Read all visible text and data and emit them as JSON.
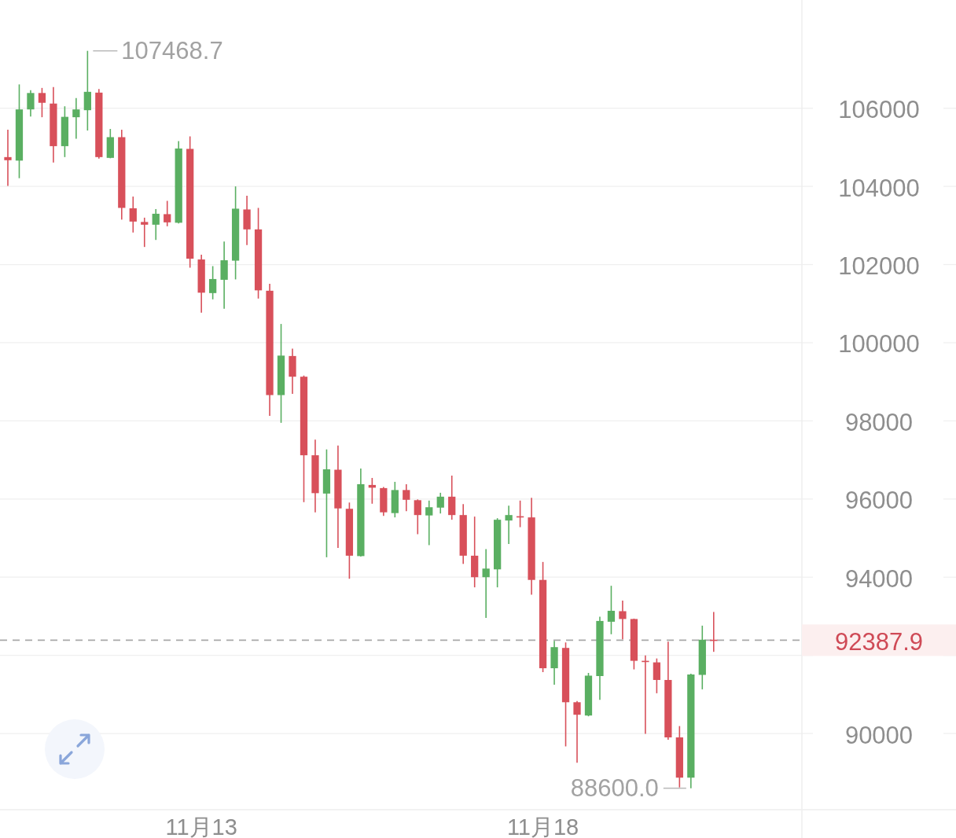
{
  "chart_data": {
    "type": "candlestick",
    "categories": [
      null,
      null,
      null,
      null,
      null,
      null,
      null,
      null,
      null,
      null,
      null,
      null,
      null,
      null,
      null,
      null,
      null,
      "11月13",
      null,
      null,
      null,
      null,
      null,
      null,
      null,
      null,
      null,
      null,
      null,
      null,
      null,
      null,
      null,
      null,
      null,
      null,
      null,
      null,
      null,
      null,
      null,
      null,
      null,
      null,
      null,
      null,
      null,
      "11月18",
      null,
      null,
      null,
      null,
      null,
      null,
      null,
      null,
      null,
      null,
      null,
      null,
      null,
      null,
      null
    ],
    "ohlc": [
      [
        104750,
        105450,
        104010,
        104670
      ],
      [
        104660,
        106610,
        104210,
        105970
      ],
      [
        105970,
        106460,
        105790,
        106390
      ],
      [
        106390,
        106520,
        105770,
        106140
      ],
      [
        106120,
        106540,
        104610,
        105030
      ],
      [
        105030,
        106050,
        104750,
        105780
      ],
      [
        105770,
        106260,
        105220,
        105970
      ],
      [
        105950,
        107468.7,
        105430,
        106420
      ],
      [
        106400,
        106490,
        104710,
        104750
      ],
      [
        104730,
        105470,
        104720,
        105260
      ],
      [
        105260,
        105450,
        103150,
        103450
      ],
      [
        103440,
        103740,
        102820,
        103100
      ],
      [
        103090,
        103200,
        102450,
        103020
      ],
      [
        103020,
        103420,
        102630,
        103300
      ],
      [
        103290,
        103630,
        102980,
        103080
      ],
      [
        103070,
        105160,
        103050,
        104970
      ],
      [
        104960,
        105280,
        101920,
        102150
      ],
      [
        102130,
        102250,
        100770,
        101280
      ],
      [
        101270,
        101960,
        101110,
        101630
      ],
      [
        101610,
        102590,
        100870,
        102110
      ],
      [
        102100,
        104000,
        101620,
        103430
      ],
      [
        103410,
        103760,
        102500,
        102900
      ],
      [
        102900,
        103450,
        101130,
        101340
      ],
      [
        101330,
        101510,
        98130,
        98660
      ],
      [
        98660,
        100480,
        97950,
        99670
      ],
      [
        99660,
        99850,
        98690,
        99130
      ],
      [
        99130,
        99160,
        95920,
        97120
      ],
      [
        97120,
        97520,
        95660,
        96150
      ],
      [
        96140,
        97270,
        94510,
        96760
      ],
      [
        96750,
        97370,
        94750,
        95760
      ],
      [
        95750,
        95910,
        93960,
        94550
      ],
      [
        94540,
        96780,
        94530,
        96380
      ],
      [
        96360,
        96540,
        95880,
        96290
      ],
      [
        96280,
        96310,
        95570,
        95660
      ],
      [
        95640,
        96440,
        95530,
        96230
      ],
      [
        96230,
        96380,
        95690,
        95980
      ],
      [
        95970,
        95990,
        95100,
        95590
      ],
      [
        95580,
        95960,
        94820,
        95790
      ],
      [
        95780,
        96160,
        95630,
        96060
      ],
      [
        96060,
        96600,
        95470,
        95590
      ],
      [
        95590,
        95870,
        94340,
        94550
      ],
      [
        94550,
        95550,
        93740,
        94000
      ],
      [
        94000,
        94720,
        92960,
        94220
      ],
      [
        94200,
        95510,
        93740,
        95470
      ],
      [
        95450,
        95830,
        94850,
        95590
      ],
      [
        95560,
        95960,
        95280,
        95530
      ],
      [
        95530,
        96030,
        93550,
        93930
      ],
      [
        93930,
        94390,
        91570,
        91670
      ],
      [
        91670,
        92370,
        91250,
        92210
      ],
      [
        92190,
        92330,
        89670,
        90800
      ],
      [
        90800,
        90830,
        89250,
        90480
      ],
      [
        90460,
        91550,
        90440,
        91480
      ],
      [
        91470,
        92990,
        90860,
        92880
      ],
      [
        92860,
        93780,
        92540,
        93140
      ],
      [
        93130,
        93400,
        92410,
        92930
      ],
      [
        92930,
        92940,
        91640,
        91860
      ],
      [
        91860,
        92000,
        89990,
        91840
      ],
      [
        91820,
        91920,
        91030,
        91370
      ],
      [
        91370,
        92350,
        89840,
        89900
      ],
      [
        89900,
        90190,
        88620,
        88870
      ],
      [
        88870,
        91530,
        88600.0,
        91510
      ],
      [
        91500,
        92760,
        91130,
        92400
      ],
      [
        92400,
        93110,
        92090,
        92387.9
      ]
    ],
    "colors": [
      "#d8505a",
      "#5aaf62",
      "#5aaf62",
      "#d8505a",
      "#d8505a",
      "#5aaf62",
      "#5aaf62",
      "#5aaf62",
      "#d8505a",
      "#5aaf62",
      "#d8505a",
      "#d8505a",
      "#d8505a",
      "#5aaf62",
      "#d8505a",
      "#5aaf62",
      "#d8505a",
      "#d8505a",
      "#5aaf62",
      "#5aaf62",
      "#5aaf62",
      "#d8505a",
      "#d8505a",
      "#d8505a",
      "#5aaf62",
      "#d8505a",
      "#d8505a",
      "#d8505a",
      "#5aaf62",
      "#d8505a",
      "#d8505a",
      "#5aaf62",
      "#d8505a",
      "#d8505a",
      "#5aaf62",
      "#d8505a",
      "#d8505a",
      "#5aaf62",
      "#5aaf62",
      "#d8505a",
      "#d8505a",
      "#d8505a",
      "#5aaf62",
      "#5aaf62",
      "#5aaf62",
      "#d8505a",
      "#d8505a",
      "#d8505a",
      "#5aaf62",
      "#d8505a",
      "#d8505a",
      "#5aaf62",
      "#5aaf62",
      "#5aaf62",
      "#d8505a",
      "#d8505a",
      "#d8505a",
      "#d8505a",
      "#d8505a",
      "#d8505a",
      "#5aaf62",
      "#5aaf62",
      "#d8505a"
    ],
    "ylim": [
      88050,
      108770
    ],
    "yticks": [
      90000,
      {
        "value": 92000,
        "label": null
      },
      94000,
      96000,
      98000,
      100000,
      102000,
      104000,
      106000
    ],
    "grid": "y",
    "ref_lines": [
      {
        "axis": "y",
        "value": 92387.9,
        "label": "92387.9",
        "color": "#a8a8a8",
        "line_style": "dashed"
      }
    ],
    "annotations": [
      "107468.7",
      "88600.0"
    ]
  }
}
